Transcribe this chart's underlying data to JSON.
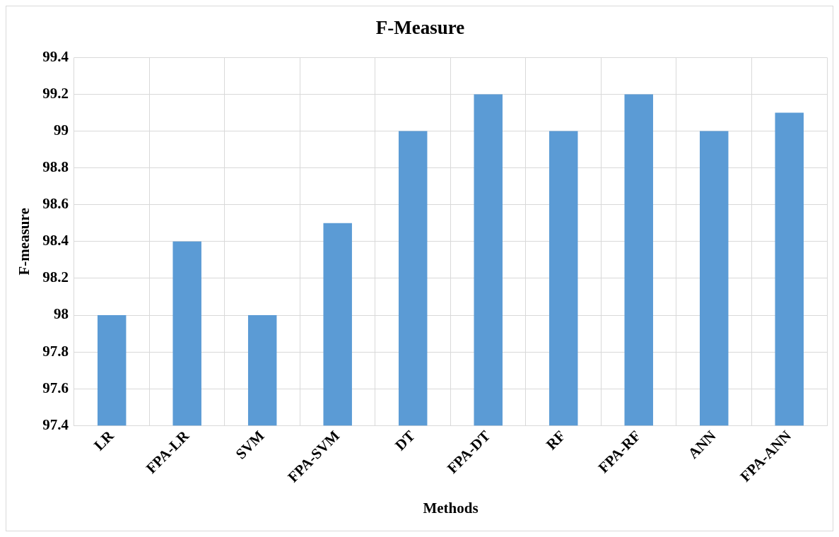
{
  "chart_data": {
    "type": "bar",
    "title": "F-Measure",
    "xlabel": "Methods",
    "ylabel": "F-measure",
    "categories": [
      "LR",
      "FPA-LR",
      "SVM",
      "FPA-SVM",
      "DT",
      "FPA-DT",
      "RF",
      "FPA-RF",
      "ANN",
      "FPA-ANN"
    ],
    "values": [
      98,
      98.4,
      98,
      98.5,
      99,
      99.2,
      99,
      99.2,
      99,
      99.1
    ],
    "color": "#5b9bd5",
    "ylim": [
      97.4,
      99.4
    ],
    "yticks": [
      97.4,
      97.6,
      97.8,
      98,
      98.2,
      98.4,
      98.6,
      98.8,
      99,
      99.2,
      99.4
    ],
    "grid": true
  }
}
